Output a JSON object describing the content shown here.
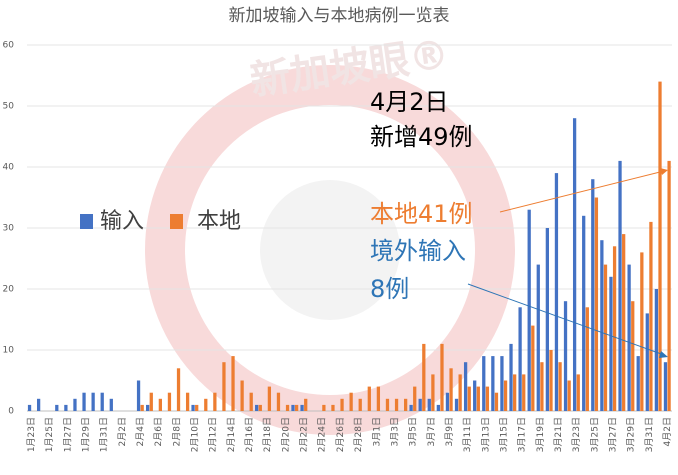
{
  "chart_data": {
    "type": "bar",
    "title": "新加坡输入与本地病例一览表",
    "watermark": "新加坡眼®",
    "categories": [
      "1月23日",
      null,
      "1月25日",
      null,
      "1月27日",
      null,
      "1月29日",
      null,
      "1月31日",
      null,
      "2月2日",
      null,
      "2月4日",
      null,
      "2月6日",
      null,
      "2月8日",
      null,
      "2月10日",
      null,
      "2月12日",
      null,
      "2月14日",
      null,
      "2月16日",
      null,
      "2月18日",
      null,
      "2月20日",
      null,
      "2月22日",
      null,
      "2月24日",
      null,
      "2月26日",
      null,
      "2月28日",
      null,
      "3月1日",
      null,
      "3月3日",
      null,
      "3月5日",
      null,
      "3月7日",
      null,
      "3月9日",
      null,
      "3月11日",
      null,
      "3月13日",
      null,
      "3月15日",
      null,
      "3月17日",
      null,
      "3月19日",
      null,
      "3月21日",
      null,
      "3月23日",
      null,
      "3月25日",
      null,
      "3月27日",
      null,
      "3月29日",
      null,
      "3月31日",
      null,
      "4月2日"
    ],
    "series": [
      {
        "name": "输入",
        "color": "#4472c4",
        "values": [
          1,
          2,
          0,
          1,
          1,
          2,
          3,
          3,
          3,
          2,
          0,
          0,
          5,
          1,
          0,
          0,
          0,
          0,
          1,
          0,
          0,
          0,
          0,
          0,
          0,
          1,
          0,
          0,
          0,
          1,
          1,
          0,
          0,
          0,
          0,
          0,
          0,
          0,
          0,
          0,
          0,
          0,
          1,
          2,
          2,
          1,
          3,
          2,
          8,
          5,
          9,
          9,
          9,
          11,
          17,
          33,
          24,
          30,
          39,
          18,
          48,
          32,
          38,
          28,
          22,
          41,
          24,
          9,
          16,
          20,
          8
        ]
      },
      {
        "name": "本地",
        "color": "#ed7d31",
        "values": [
          0,
          0,
          0,
          0,
          0,
          0,
          0,
          0,
          0,
          0,
          0,
          0,
          1,
          3,
          2,
          3,
          7,
          3,
          1,
          2,
          3,
          8,
          9,
          5,
          3,
          1,
          4,
          3,
          1,
          1,
          2,
          0,
          1,
          1,
          2,
          3,
          2,
          4,
          4,
          2,
          2,
          2,
          4,
          11,
          6,
          11,
          7,
          6,
          4,
          4,
          4,
          3,
          5,
          6,
          6,
          14,
          8,
          10,
          8,
          5,
          6,
          17,
          35,
          24,
          27,
          29,
          18,
          26,
          31,
          54,
          41
        ]
      }
    ],
    "ylim": [
      0,
      60
    ],
    "yticks": [
      0,
      10,
      20,
      30,
      40,
      50,
      60
    ],
    "grid": true,
    "annotations": [
      "4月2日",
      "新增49例",
      "本地41例",
      "境外输入",
      "8例"
    ]
  }
}
